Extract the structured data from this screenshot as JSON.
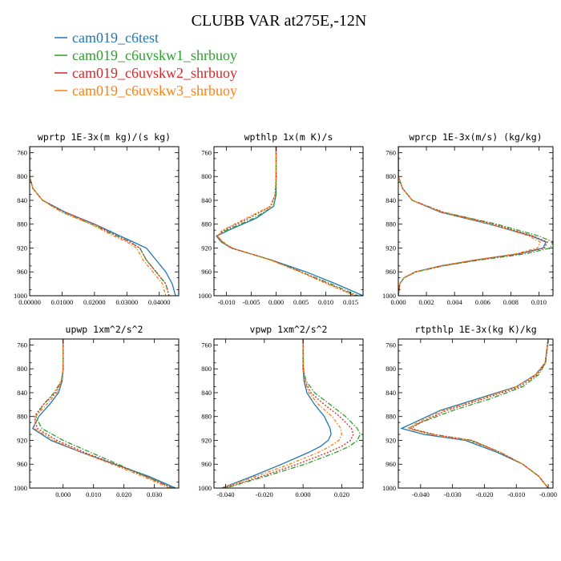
{
  "figure": {
    "title": "CLUBB VAR at275E,-12N"
  },
  "legend": [
    {
      "name": "cam019_c6test",
      "color": "#1f77b4",
      "dash": "solid"
    },
    {
      "name": "cam019_c6uvskw1_shrbuoy",
      "color": "#2ca02c",
      "dash": "dashdot"
    },
    {
      "name": "cam019_c6uvskw2_shrbuoy",
      "color": "#d62728",
      "dash": "dot"
    },
    {
      "name": "cam019_c6uvskw3_shrbuoy",
      "color": "#ff7f0e",
      "dash": "dashdot2"
    }
  ],
  "chart_data": [
    {
      "type": "line",
      "title": "wprtp  1E-3x(m kg)/(s kg)",
      "xlim": [
        0,
        0.0046
      ],
      "ylim": [
        1000,
        750
      ],
      "xticks": [
        0,
        0.01,
        0.02,
        0.03,
        0.04
      ],
      "xtick_labels": [
        "0.00000",
        "0.01000",
        "0.02000",
        "0.03000",
        "0.04000"
      ],
      "xtick_scale": 0.1,
      "yticks": [
        760,
        800,
        840,
        880,
        920,
        960,
        1000
      ],
      "series": [
        {
          "p": [
            750,
            800,
            820,
            840,
            860,
            880,
            900,
            910,
            920,
            940,
            960,
            980,
            1000
          ],
          "x": [
            0,
            0,
            0.0001,
            0.0004,
            0.0011,
            0.002,
            0.0028,
            0.0032,
            0.0036,
            0.0039,
            0.0042,
            0.0044,
            0.0045
          ]
        },
        {
          "p": [
            750,
            800,
            820,
            840,
            860,
            880,
            900,
            910,
            920,
            940,
            960,
            980,
            1000
          ],
          "x": [
            0,
            0,
            0.0001,
            0.0004,
            0.001,
            0.0019,
            0.0027,
            0.0031,
            0.0034,
            0.0036,
            0.0039,
            0.0042,
            0.0043
          ]
        },
        {
          "p": [
            750,
            800,
            820,
            840,
            860,
            880,
            900,
            910,
            920,
            940,
            960,
            980,
            1000
          ],
          "x": [
            0,
            0,
            0.0001,
            0.0004,
            0.0011,
            0.002,
            0.0027,
            0.0031,
            0.0034,
            0.0036,
            0.0039,
            0.0042,
            0.0043
          ]
        },
        {
          "p": [
            750,
            800,
            820,
            840,
            860,
            880,
            900,
            910,
            920,
            940,
            960,
            980,
            1000
          ],
          "x": [
            0,
            0,
            0.0001,
            0.0004,
            0.001,
            0.0019,
            0.0026,
            0.003,
            0.0033,
            0.0035,
            0.0038,
            0.0041,
            0.0042
          ]
        }
      ]
    },
    {
      "type": "line",
      "title": "wpthlp  1x(m K)/s",
      "xlim": [
        -0.0125,
        0.0175
      ],
      "ylim": [
        1000,
        750
      ],
      "xticks": [
        -0.01,
        -0.005,
        0,
        0.005,
        0.01,
        0.015
      ],
      "xtick_labels": [
        "-0.010",
        "-0.005",
        "0.000",
        "0.005",
        "0.010",
        "0.015"
      ],
      "xtick_scale": 1,
      "yticks": [
        760,
        800,
        840,
        880,
        920,
        960,
        1000
      ],
      "series": [
        {
          "p": [
            750,
            800,
            830,
            850,
            870,
            890,
            900,
            910,
            920,
            940,
            960,
            980,
            1000
          ],
          "x": [
            0,
            0,
            0,
            -0.0005,
            -0.004,
            -0.0095,
            -0.012,
            -0.011,
            -0.009,
            -0.001,
            0.006,
            0.012,
            0.0175
          ]
        },
        {
          "p": [
            750,
            800,
            830,
            850,
            870,
            890,
            900,
            910,
            920,
            940,
            960,
            980,
            1000
          ],
          "x": [
            0,
            0,
            0,
            -0.0005,
            -0.0045,
            -0.01,
            -0.012,
            -0.011,
            -0.009,
            -0.001,
            0.005,
            0.011,
            0.0165
          ]
        },
        {
          "p": [
            750,
            800,
            830,
            850,
            870,
            890,
            900,
            910,
            920,
            940,
            960,
            980,
            1000
          ],
          "x": [
            0,
            0,
            -0.0002,
            -0.001,
            -0.0055,
            -0.0105,
            -0.0118,
            -0.0108,
            -0.009,
            -0.001,
            0.005,
            0.0105,
            0.016
          ]
        },
        {
          "p": [
            750,
            800,
            830,
            850,
            870,
            890,
            900,
            910,
            920,
            940,
            960,
            980,
            1000
          ],
          "x": [
            0,
            0,
            -0.0002,
            -0.0012,
            -0.006,
            -0.0108,
            -0.0118,
            -0.0106,
            -0.0088,
            -0.0012,
            0.0048,
            0.0102,
            0.0158
          ]
        }
      ]
    },
    {
      "type": "line",
      "title": "wprcp  1E-3x(m/s) (kg/kg)",
      "xlim": [
        0,
        0.011
      ],
      "ylim": [
        1000,
        750
      ],
      "xticks": [
        0,
        0.002,
        0.004,
        0.006,
        0.008,
        0.01
      ],
      "xtick_labels": [
        "0.000",
        "0.002",
        "0.004",
        "0.006",
        "0.008",
        "0.010"
      ],
      "xtick_scale": 1,
      "yticks": [
        760,
        800,
        840,
        880,
        920,
        960,
        1000
      ],
      "series": [
        {
          "p": [
            750,
            800,
            820,
            840,
            860,
            880,
            900,
            910,
            920,
            930,
            940,
            950,
            960,
            970,
            980,
            1000
          ],
          "x": [
            0,
            0,
            0.0003,
            0.001,
            0.003,
            0.0065,
            0.0095,
            0.0105,
            0.0103,
            0.0085,
            0.0055,
            0.003,
            0.0012,
            0.0004,
            0.0001,
            0
          ]
        },
        {
          "p": [
            750,
            800,
            820,
            840,
            860,
            880,
            900,
            910,
            920,
            930,
            940,
            950,
            960,
            970,
            980,
            1000
          ],
          "x": [
            0,
            0,
            0.0003,
            0.001,
            0.0032,
            0.007,
            0.01,
            0.011,
            0.0108,
            0.009,
            0.0058,
            0.0032,
            0.0013,
            0.0004,
            0.0001,
            0
          ]
        },
        {
          "p": [
            750,
            800,
            820,
            840,
            860,
            880,
            900,
            910,
            920,
            930,
            940,
            950,
            960,
            970,
            980,
            1000
          ],
          "x": [
            0,
            0,
            0.0003,
            0.001,
            0.0032,
            0.0068,
            0.0096,
            0.0106,
            0.0104,
            0.0086,
            0.0056,
            0.0031,
            0.0012,
            0.0004,
            0.0001,
            0
          ]
        },
        {
          "p": [
            750,
            800,
            820,
            840,
            860,
            880,
            900,
            910,
            920,
            930,
            940,
            950,
            960,
            970,
            980,
            1000
          ],
          "x": [
            0,
            0,
            0.0003,
            0.001,
            0.0031,
            0.0066,
            0.0093,
            0.0101,
            0.0099,
            0.0083,
            0.0054,
            0.003,
            0.0012,
            0.0004,
            0.0001,
            0
          ]
        }
      ]
    },
    {
      "type": "line",
      "title": "upwp  1xm^2/s^2",
      "xlim": [
        -0.011,
        0.038
      ],
      "ylim": [
        1000,
        750
      ],
      "xticks": [
        0,
        0.01,
        0.02,
        0.03
      ],
      "xtick_labels": [
        "0.000",
        "0.010",
        "0.020",
        "0.030"
      ],
      "xtick_scale": 1,
      "yticks": [
        760,
        800,
        840,
        880,
        920,
        960,
        1000
      ],
      "series": [
        {
          "p": [
            750,
            800,
            820,
            840,
            860,
            880,
            900,
            920,
            940,
            960,
            980,
            1000
          ],
          "x": [
            0,
            0,
            -0.0003,
            -0.0015,
            -0.0045,
            -0.008,
            -0.01,
            -0.004,
            0.006,
            0.017,
            0.028,
            0.037
          ]
        },
        {
          "p": [
            750,
            800,
            820,
            840,
            860,
            880,
            900,
            920,
            940,
            960,
            980,
            1000
          ],
          "x": [
            0,
            0,
            -0.0006,
            -0.003,
            -0.0065,
            -0.009,
            -0.007,
            0.0,
            0.009,
            0.018,
            0.027,
            0.036
          ]
        },
        {
          "p": [
            750,
            800,
            820,
            840,
            860,
            880,
            900,
            920,
            940,
            960,
            980,
            1000
          ],
          "x": [
            0,
            0,
            -0.0005,
            -0.0025,
            -0.0065,
            -0.0095,
            -0.0085,
            -0.002,
            0.007,
            0.017,
            0.027,
            0.036
          ]
        },
        {
          "p": [
            750,
            800,
            820,
            840,
            860,
            880,
            900,
            920,
            940,
            960,
            980,
            1000
          ],
          "x": [
            0,
            0,
            -0.0004,
            -0.002,
            -0.0055,
            -0.009,
            -0.0095,
            -0.003,
            0.006,
            0.016,
            0.026,
            0.035
          ]
        }
      ]
    },
    {
      "type": "line",
      "title": "vpwp  1xm^2/s^2",
      "xlim": [
        -0.046,
        0.031
      ],
      "ylim": [
        1000,
        750
      ],
      "xticks": [
        -0.04,
        -0.02,
        0,
        0.02
      ],
      "xtick_labels": [
        "-0.040",
        "-0.020",
        "0.000",
        "0.020"
      ],
      "xtick_scale": 1,
      "yticks": [
        760,
        800,
        840,
        880,
        920,
        960,
        1000
      ],
      "series": [
        {
          "p": [
            750,
            800,
            820,
            840,
            860,
            880,
            900,
            910,
            920,
            930,
            940,
            960,
            980,
            1000
          ],
          "x": [
            0,
            0,
            0.0005,
            0.002,
            0.006,
            0.011,
            0.014,
            0.0145,
            0.013,
            0.009,
            0.003,
            -0.011,
            -0.026,
            -0.042
          ]
        },
        {
          "p": [
            750,
            800,
            820,
            840,
            860,
            880,
            900,
            910,
            920,
            930,
            940,
            960,
            980,
            1000
          ],
          "x": [
            0,
            0.0002,
            0.0015,
            0.006,
            0.014,
            0.022,
            0.028,
            0.0295,
            0.028,
            0.024,
            0.017,
            0.001,
            -0.019,
            -0.04
          ]
        },
        {
          "p": [
            750,
            800,
            820,
            840,
            860,
            880,
            900,
            910,
            920,
            930,
            940,
            960,
            980,
            1000
          ],
          "x": [
            0,
            0.0002,
            0.001,
            0.004,
            0.011,
            0.019,
            0.025,
            0.026,
            0.0245,
            0.02,
            0.013,
            -0.003,
            -0.021,
            -0.041
          ]
        },
        {
          "p": [
            750,
            800,
            820,
            840,
            860,
            880,
            900,
            910,
            920,
            930,
            940,
            960,
            980,
            1000
          ],
          "x": [
            0,
            0,
            0.0008,
            0.003,
            0.008,
            0.015,
            0.0195,
            0.02,
            0.0185,
            0.014,
            0.008,
            -0.007,
            -0.024,
            -0.042
          ]
        }
      ]
    },
    {
      "type": "line",
      "title": "rtpthlp  1E-3x(kg K)/kg",
      "xlim": [
        -0.047,
        0.0015
      ],
      "ylim": [
        1000,
        750
      ],
      "xticks": [
        -0.04,
        -0.03,
        -0.02,
        -0.01,
        0
      ],
      "xtick_labels": [
        "-0.040",
        "-0.030",
        "-0.020",
        "-0.010",
        "-0.000"
      ],
      "xtick_scale": 1,
      "yticks": [
        760,
        800,
        840,
        880,
        920,
        960,
        1000
      ],
      "series": [
        {
          "p": [
            750,
            790,
            810,
            830,
            850,
            870,
            890,
            900,
            910,
            920,
            940,
            960,
            980,
            1000
          ],
          "x": [
            0,
            -0.001,
            -0.004,
            -0.01,
            -0.022,
            -0.034,
            -0.042,
            -0.046,
            -0.039,
            -0.026,
            -0.016,
            -0.008,
            -0.003,
            0
          ]
        },
        {
          "p": [
            750,
            790,
            810,
            830,
            850,
            870,
            890,
            900,
            910,
            920,
            940,
            960,
            980,
            1000
          ],
          "x": [
            0,
            -0.0008,
            -0.003,
            -0.008,
            -0.018,
            -0.03,
            -0.04,
            -0.044,
            -0.036,
            -0.024,
            -0.015,
            -0.008,
            -0.003,
            0
          ]
        },
        {
          "p": [
            750,
            790,
            810,
            830,
            850,
            870,
            890,
            900,
            910,
            920,
            940,
            960,
            980,
            1000
          ],
          "x": [
            0,
            -0.0008,
            -0.0035,
            -0.009,
            -0.02,
            -0.032,
            -0.04,
            -0.043,
            -0.036,
            -0.024,
            -0.015,
            -0.008,
            -0.003,
            0
          ]
        },
        {
          "p": [
            750,
            790,
            810,
            830,
            850,
            870,
            890,
            900,
            910,
            920,
            940,
            960,
            980,
            1000
          ],
          "x": [
            0,
            -0.001,
            -0.004,
            -0.01,
            -0.021,
            -0.033,
            -0.041,
            -0.044,
            -0.037,
            -0.025,
            -0.015,
            -0.008,
            -0.003,
            0
          ]
        }
      ]
    }
  ]
}
